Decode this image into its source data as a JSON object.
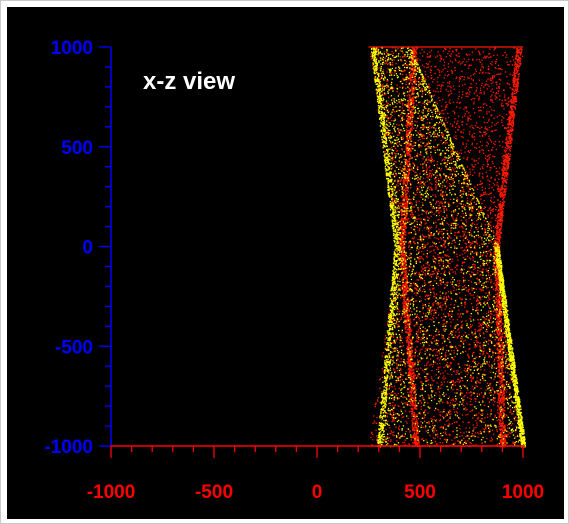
{
  "chart_data": {
    "type": "scatter",
    "title": "x-z view",
    "xlabel": "",
    "ylabel": "",
    "xlim": [
      -1000,
      1000
    ],
    "ylim": [
      -1000,
      1000
    ],
    "x_ticks": [
      -1000,
      -500,
      0,
      500,
      1000
    ],
    "y_ticks": [
      -1000,
      -500,
      0,
      500,
      1000
    ],
    "x_tick_labels": [
      "-1000",
      "-500",
      "0",
      "500",
      "1000"
    ],
    "y_tick_labels": [
      "-1000",
      "-500",
      "0",
      "500",
      "1000"
    ],
    "grid": false,
    "legend": "none",
    "background": "#000000",
    "colors": {
      "x_axis": "#ff0000",
      "y_axis": "#0000ff",
      "title": "#ffffff",
      "series_red": "#ff1a00",
      "series_yellow": "#ffff00"
    },
    "series": [
      {
        "color": "#ff1a00",
        "shape": "band",
        "left_edge": [
          {
            "z": 1000,
            "x": 250
          },
          {
            "z": 0,
            "x": 390
          },
          {
            "z": -1000,
            "x": 250
          }
        ],
        "right_edge": [
          {
            "z": 1000,
            "x": 1000
          },
          {
            "z": 0,
            "x": 880
          },
          {
            "z": -1000,
            "x": 1000
          }
        ],
        "dense_curves": [
          [
            {
              "z": 1000,
              "x": 470
            },
            {
              "z": 0,
              "x": 410
            },
            {
              "z": -1000,
              "x": 480
            }
          ],
          [
            {
              "z": 1000,
              "x": 980
            },
            {
              "z": 0,
              "x": 870
            },
            {
              "z": -1000,
              "x": 900
            }
          ]
        ]
      },
      {
        "color": "#ffff00",
        "shape": "band",
        "left_edge": [
          {
            "z": 1000,
            "x": 270
          },
          {
            "z": 0,
            "x": 400
          },
          {
            "z": -1000,
            "x": 310
          }
        ],
        "right_edge": [
          {
            "z": 1000,
            "x": 450
          },
          {
            "z": 0,
            "x": 880
          },
          {
            "z": -1000,
            "x": 1000
          }
        ],
        "dense_curves": [
          [
            {
              "z": 1000,
              "x": 270
            },
            {
              "z": 0,
              "x": 385
            },
            {
              "z": -1000,
              "x": 300
            }
          ],
          [
            {
              "z": -1000,
              "x": 1000
            },
            {
              "z": 0,
              "x": 870
            }
          ]
        ]
      }
    ]
  }
}
